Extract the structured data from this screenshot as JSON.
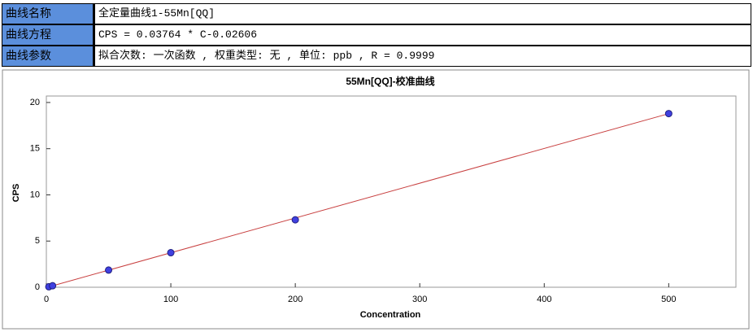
{
  "table": {
    "rows": [
      [
        "曲线名称",
        "全定量曲线1-55Mn[QQ]"
      ],
      [
        "曲线方程",
        "CPS = 0.03764 * C-0.02606"
      ],
      [
        "曲线参数",
        "拟合次数: 一次函数 , 权重类型: 无 , 单位: ppb , R = 0.9999"
      ]
    ]
  },
  "chart_data": {
    "type": "scatter",
    "title": "55Mn[QQ]-校准曲线",
    "x_label": "Concentration",
    "y_label": "CPS",
    "x": [
      2,
      5,
      50,
      100,
      200,
      500
    ],
    "values": [
      0.05,
      0.16,
      1.86,
      3.74,
      7.3,
      18.8
    ],
    "color": "#4040e0",
    "fit_line": {
      "x": [
        0,
        500
      ],
      "values": [
        -0.03,
        18.79
      ],
      "color": "#c84040"
    },
    "xlim": [
      0,
      554
    ],
    "ylim": [
      0,
      20.7
    ],
    "xticks": [
      0,
      100,
      200,
      300,
      400,
      500
    ],
    "yticks": [
      0,
      5,
      10,
      15,
      20
    ],
    "grid": false
  }
}
